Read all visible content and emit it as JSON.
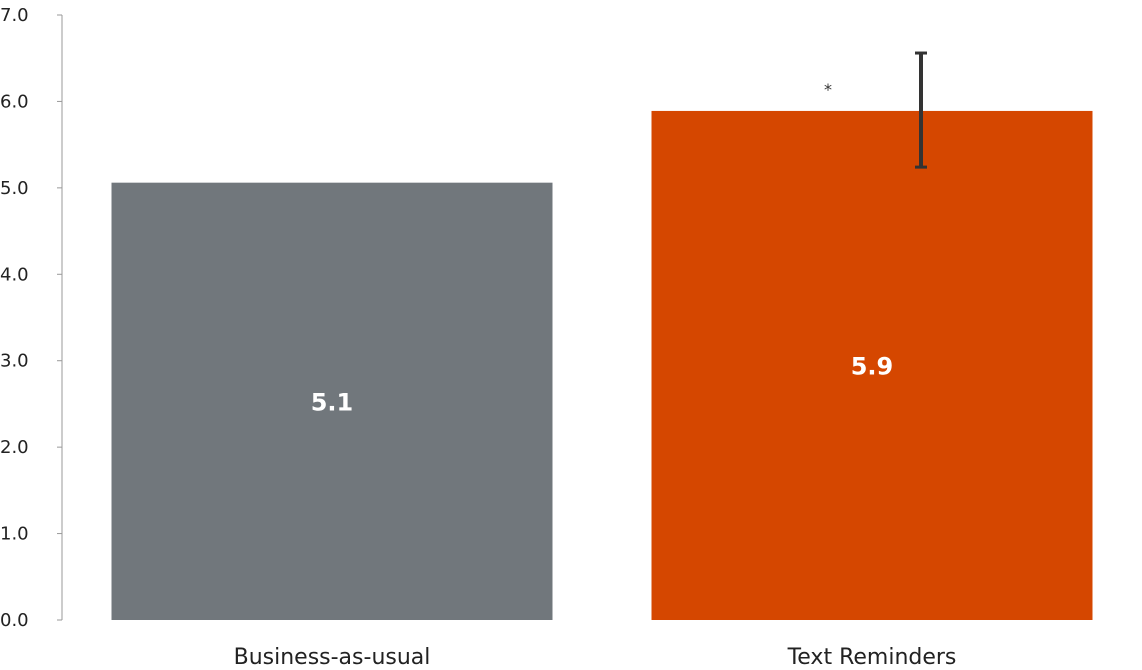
{
  "chart_data": {
    "type": "bar",
    "categories": [
      "Business-as-usual",
      "Text Reminders"
    ],
    "values": [
      5.06,
      5.89
    ],
    "data_labels": [
      "5.1",
      "5.9"
    ],
    "colors": [
      "#71777c",
      "#d54700"
    ],
    "error_bars": [
      null,
      {
        "low": 5.24,
        "high": 6.56
      }
    ],
    "annotations": [
      {
        "category": "Text Reminders",
        "text": "*"
      }
    ],
    "ylim": [
      0,
      7
    ],
    "yticks": [
      0,
      1,
      2,
      3,
      4,
      5,
      6,
      7
    ],
    "ytick_labels": [
      "0.0",
      "1.0",
      "2.0",
      "3.0",
      "4.0",
      "5.0",
      "6.0",
      "7.0"
    ],
    "grid": false,
    "title": "",
    "xlabel": "",
    "ylabel": ""
  }
}
